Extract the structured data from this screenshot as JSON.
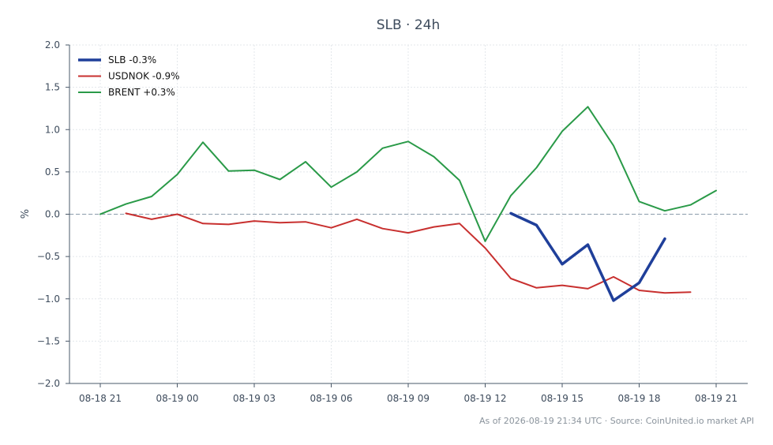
{
  "chart_data": {
    "type": "line",
    "title": "SLB · 24h",
    "xlabel": "",
    "ylabel": "%",
    "ylim": [
      -2.0,
      2.0
    ],
    "yticks": [
      "2.0",
      "1.5",
      "1.0",
      "0.5",
      "0.0",
      "−0.5",
      "−1.0",
      "−1.5",
      "−2.0"
    ],
    "ytick_values": [
      2.0,
      1.5,
      1.0,
      0.5,
      0.0,
      -0.5,
      -1.0,
      -1.5,
      -2.0
    ],
    "xticks": [
      "08-18 21",
      "08-19 00",
      "08-19 03",
      "08-19 06",
      "08-19 09",
      "08-19 12",
      "08-19 15",
      "08-19 18",
      "08-19 21"
    ],
    "xtick_hours": [
      0,
      3,
      6,
      9,
      12,
      15,
      18,
      21,
      24
    ],
    "x_unit": "hours from 08-18 21:00",
    "grid": true,
    "legend_position": "top-left",
    "reference_line": 0.0,
    "series": [
      {
        "name": "SLB -0.3%",
        "color": "#1f3f9a",
        "width": 3.5,
        "x": [
          16,
          17,
          18,
          19,
          20,
          21,
          22
        ],
        "y": [
          0.01,
          -0.13,
          -0.59,
          -0.36,
          -1.02,
          -0.81,
          -0.29
        ]
      },
      {
        "name": "USDNOK -0.9%",
        "color": "#c8302f",
        "width": 2,
        "x": [
          1,
          2,
          3,
          4,
          5,
          6,
          7,
          8,
          9,
          10,
          11,
          12,
          13,
          14,
          15,
          16,
          17,
          18,
          19,
          20,
          21,
          22,
          23
        ],
        "y": [
          0.01,
          -0.06,
          0.0,
          -0.11,
          -0.12,
          -0.08,
          -0.1,
          -0.09,
          -0.16,
          -0.06,
          -0.17,
          -0.22,
          -0.15,
          -0.11,
          -0.4,
          -0.76,
          -0.87,
          -0.84,
          -0.88,
          -0.74,
          -0.9,
          -0.93,
          -0.92
        ]
      },
      {
        "name": "BRENT +0.3%",
        "color": "#2a9a48",
        "width": 2,
        "x": [
          0,
          1,
          2,
          3,
          4,
          5,
          6,
          7,
          8,
          9,
          10,
          11,
          12,
          13,
          14,
          15,
          16,
          17,
          18,
          19,
          20,
          21,
          22,
          23,
          24
        ],
        "y": [
          0.0,
          0.12,
          0.21,
          0.47,
          0.85,
          0.51,
          0.52,
          0.41,
          0.62,
          0.32,
          0.5,
          0.78,
          0.86,
          0.68,
          0.4,
          -0.32,
          0.22,
          0.55,
          0.98,
          1.27,
          0.81,
          0.15,
          0.04,
          0.11,
          0.28
        ]
      }
    ]
  },
  "footer": {
    "text": "As of 2026-08-19 21:34 UTC · Source: CoinUnited.io market API"
  },
  "colors": {
    "axis": "#4a5868",
    "grid": "#e3e7eb",
    "zero_line": "#8b9bab"
  }
}
